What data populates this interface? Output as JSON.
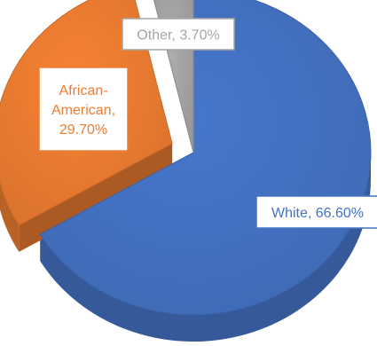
{
  "chart_data": {
    "type": "pie",
    "style": "3d",
    "categories": [
      "White",
      "African-American",
      "Other"
    ],
    "values": [
      66.6,
      29.7,
      3.7
    ],
    "labels": [
      [
        "White, 66.60%"
      ],
      [
        "African-",
        "American,",
        "29.70%"
      ],
      [
        "Other, 3.70%"
      ]
    ],
    "colors": [
      "#4472c4",
      "#ed7d31",
      "#a5a5a5"
    ],
    "title": "",
    "legend": "none",
    "exploded": "African-American"
  }
}
